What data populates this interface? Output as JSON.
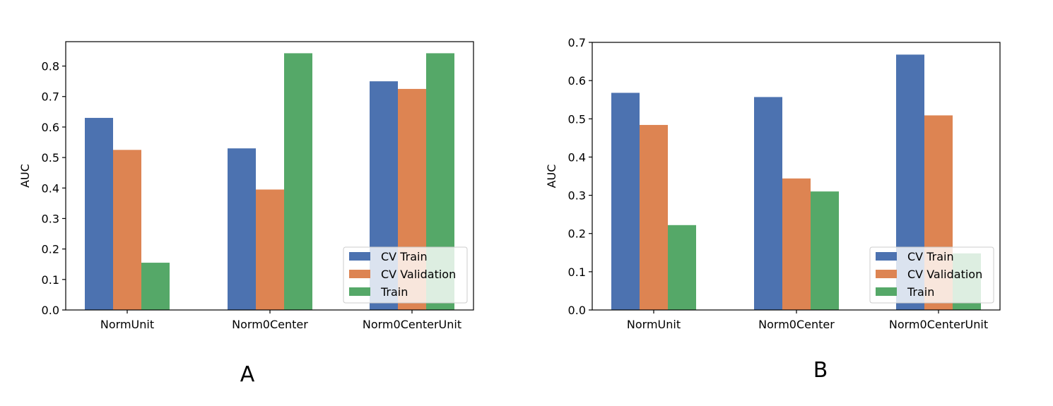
{
  "chart_data": [
    {
      "type": "bar",
      "panel_label": "A",
      "ylabel": "AUC",
      "xlabel": "",
      "categories": [
        "NormUnit",
        "Norm0Center",
        "Norm0CenterUnit"
      ],
      "ylim": [
        0,
        0.88
      ],
      "yticks": [
        "0.0",
        "0.1",
        "0.2",
        "0.3",
        "0.4",
        "0.5",
        "0.6",
        "0.7",
        "0.8"
      ],
      "series": [
        {
          "name": "CV Train",
          "color": "#4c72b0",
          "values": [
            0.63,
            0.53,
            0.75
          ]
        },
        {
          "name": "CV Validation",
          "color": "#dd8452",
          "values": [
            0.525,
            0.395,
            0.725
          ]
        },
        {
          "name": "Train",
          "color": "#55a868",
          "values": [
            0.155,
            0.842,
            0.842
          ]
        }
      ],
      "legend": "lower-right"
    },
    {
      "type": "bar",
      "panel_label": "B",
      "ylabel": "AUC",
      "xlabel": "",
      "categories": [
        "NormUnit",
        "Norm0Center",
        "Norm0CenterUnit"
      ],
      "ylim": [
        0,
        0.7
      ],
      "yticks": [
        "0.0",
        "0.1",
        "0.2",
        "0.3",
        "0.4",
        "0.5",
        "0.6",
        "0.7"
      ],
      "series": [
        {
          "name": "CV Train",
          "color": "#4c72b0",
          "values": [
            0.568,
            0.557,
            0.668
          ]
        },
        {
          "name": "CV Validation",
          "color": "#dd8452",
          "values": [
            0.484,
            0.344,
            0.509
          ]
        },
        {
          "name": "Train",
          "color": "#55a868",
          "values": [
            0.222,
            0.31,
            0.148
          ]
        }
      ],
      "legend": "lower-right"
    }
  ]
}
